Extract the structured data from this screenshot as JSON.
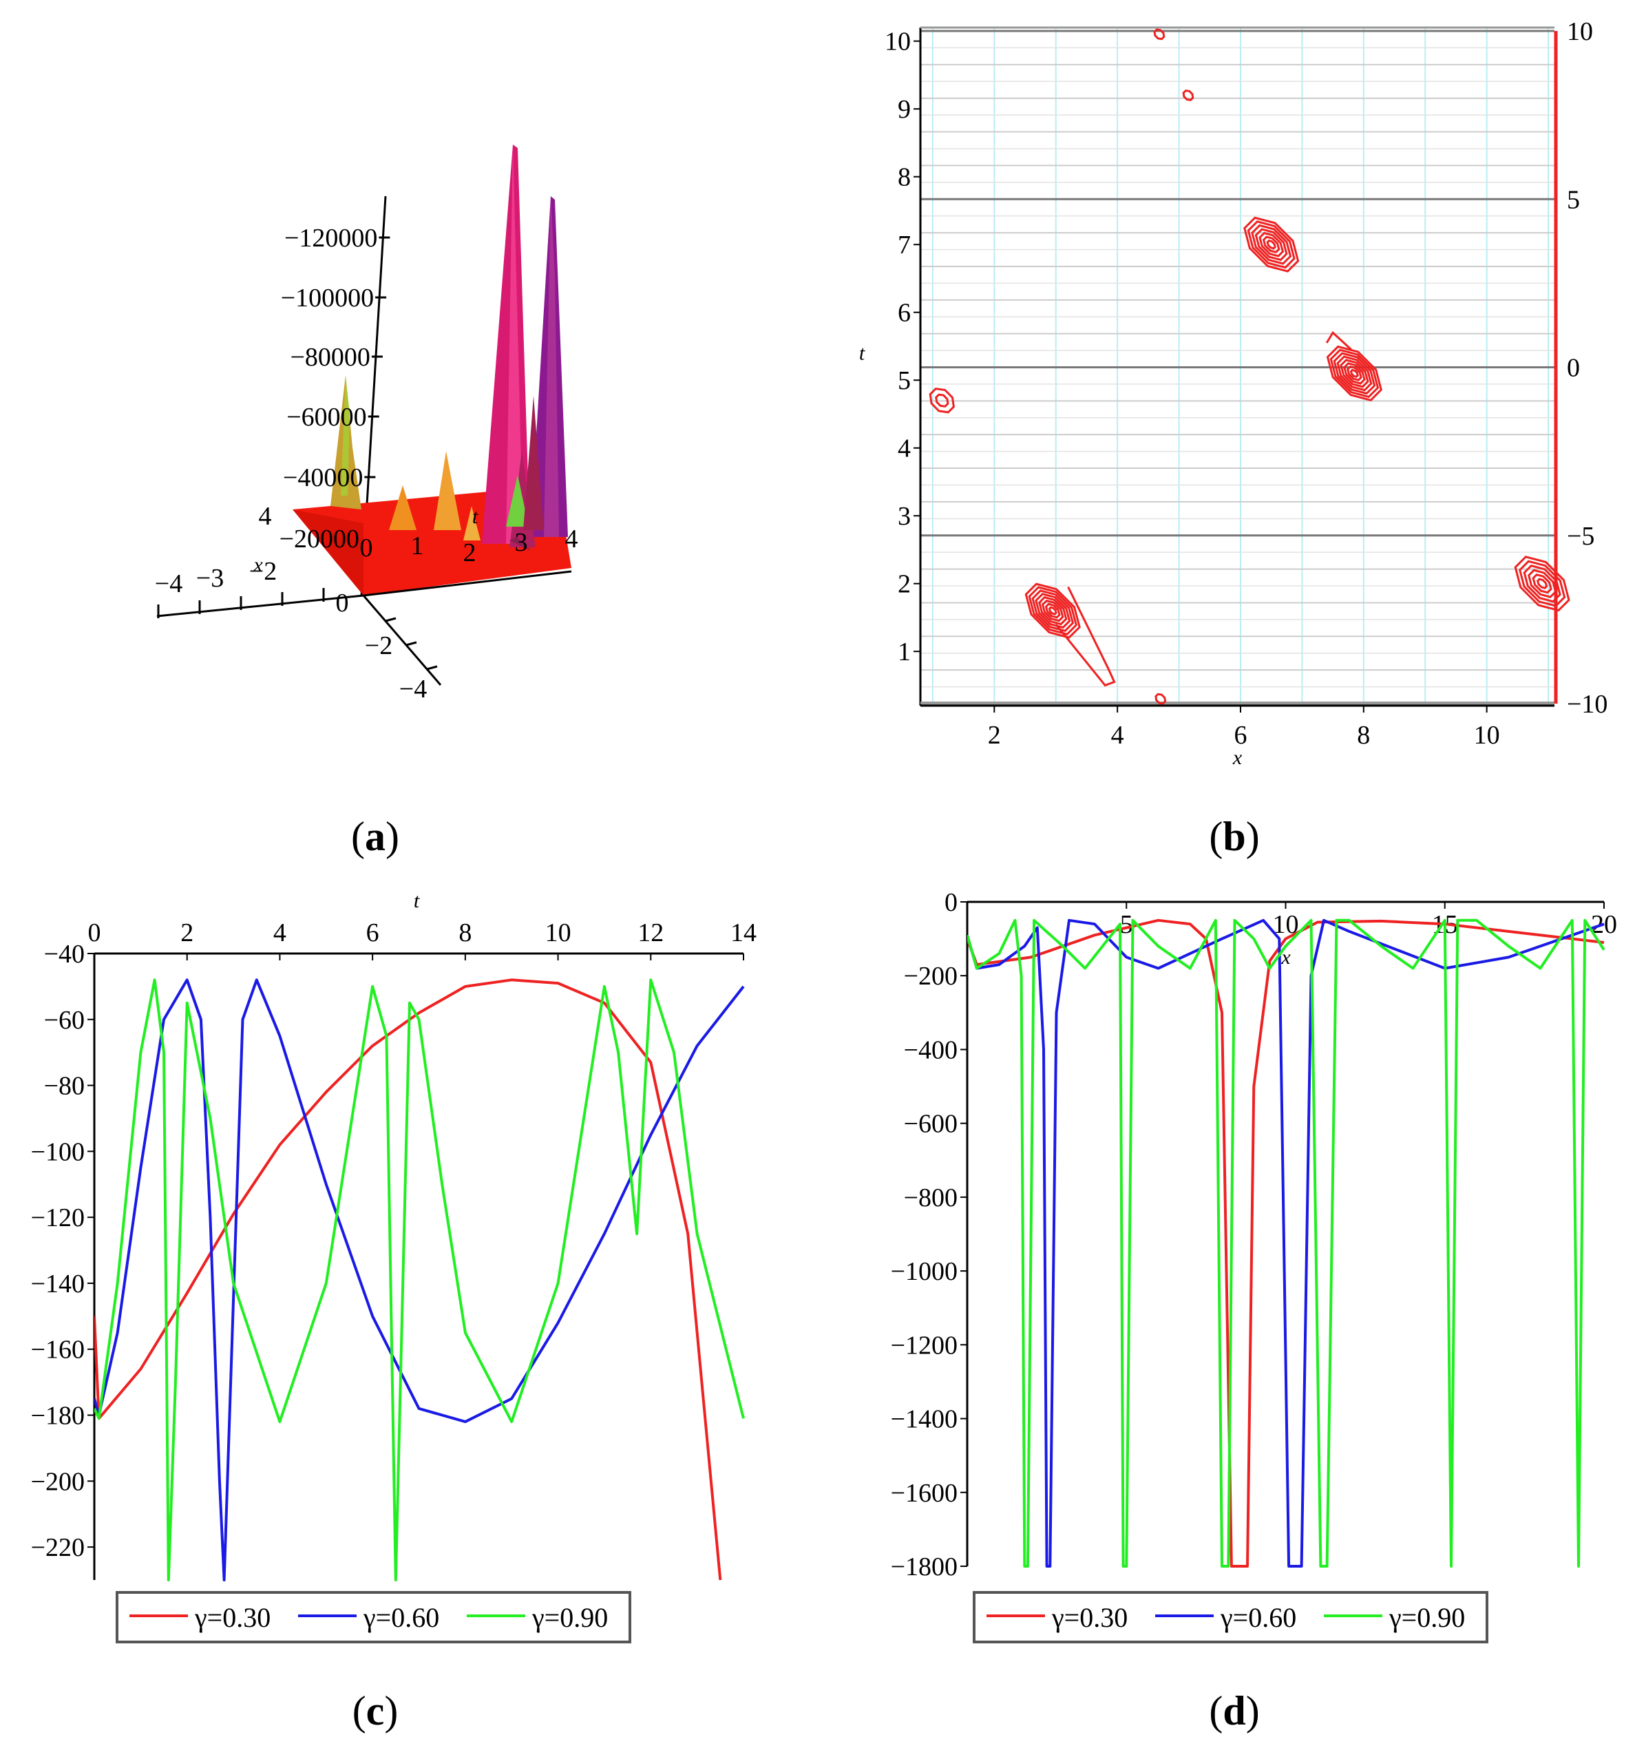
{
  "figure": {
    "panels": [
      {
        "id": "a",
        "caption_open": "(",
        "caption_letter": "a",
        "caption_close": ")"
      },
      {
        "id": "b",
        "caption_open": "(",
        "caption_letter": "b",
        "caption_close": ")"
      },
      {
        "id": "c",
        "caption_open": "(",
        "caption_letter": "c",
        "caption_close": ")"
      },
      {
        "id": "d",
        "caption_open": "(",
        "caption_letter": "d",
        "caption_close": ")"
      }
    ]
  },
  "colors": {
    "red": "#ee2222",
    "blue": "#1a1ae6",
    "green": "#22ee22",
    "axis": "#000000",
    "grid_major": "#777777",
    "grid_minor": "#cccccc",
    "grid_cyan": "#b8eef4"
  },
  "chart_data": [
    {
      "panel": "a",
      "type": "surface3d",
      "z_ticks": [
        "−120000",
        "−100000",
        "−80000",
        "−60000",
        "−40000",
        "−20000"
      ],
      "x_ticks": [
        "−4",
        "−3",
        "−2",
        "x"
      ],
      "t_ticks": [
        "0",
        "1",
        "2",
        "3",
        "4",
        "t"
      ],
      "y_ticks": [
        "4",
        "0",
        "−2",
        "−4"
      ],
      "title": ""
    },
    {
      "panel": "b",
      "type": "contour",
      "xlabel": "x",
      "ylabel": "t",
      "xlim": [
        0.8,
        11.1
      ],
      "ylim": [
        0.2,
        10.2
      ],
      "x_ticks": [
        "2",
        "4",
        "6",
        "8",
        "10"
      ],
      "y_ticks": [
        "1",
        "2",
        "3",
        "4",
        "5",
        "6",
        "7",
        "8",
        "9",
        "10"
      ],
      "colorbar_ticks": [
        "10",
        "5",
        "0",
        "−5",
        "−10"
      ],
      "colorbar_range": [
        -10,
        10
      ],
      "peaks": [
        {
          "x": 1.15,
          "t": 4.7,
          "levels": 2
        },
        {
          "x": 2.95,
          "t": 1.6,
          "levels": 8
        },
        {
          "x": 6.5,
          "t": 7.0,
          "levels": 7
        },
        {
          "x": 7.85,
          "t": 5.1,
          "levels": 8
        },
        {
          "x": 10.9,
          "t": 2.0,
          "levels": 6
        },
        {
          "x": 4.68,
          "t": 10.1,
          "levels": 1
        },
        {
          "x": 5.15,
          "t": 9.2,
          "levels": 1
        },
        {
          "x": 4.7,
          "t": 0.3,
          "levels": 1
        }
      ]
    },
    {
      "panel": "c",
      "type": "line",
      "xlabel": "t",
      "ylabel": "",
      "xlim": [
        0,
        14
      ],
      "ylim": [
        -230,
        -40
      ],
      "x_ticks": [
        "0",
        "2",
        "4",
        "6",
        "8",
        "10",
        "12",
        "14"
      ],
      "y_ticks": [
        "−40",
        "−60",
        "−80",
        "−100",
        "−120",
        "−140",
        "−160",
        "−180",
        "−200",
        "−220"
      ],
      "series": [
        {
          "name": "γ=0.30",
          "color": "red",
          "x": [
            0,
            0.1,
            1,
            2,
            3,
            4,
            5,
            6,
            7,
            8,
            9,
            10,
            11,
            12,
            12.8,
            13.2,
            13.5
          ],
          "y": [
            -150,
            -181,
            -166,
            -143,
            -119,
            -98,
            -82,
            -68,
            -58,
            -50,
            -48,
            -49,
            -55,
            -73,
            -125,
            -185,
            -230
          ]
        },
        {
          "name": "γ=0.60",
          "color": "blue",
          "x": [
            0,
            0.1,
            0.5,
            1,
            1.5,
            2,
            2.3,
            2.5,
            2.7,
            2.8,
            3.2,
            3.5,
            4,
            5,
            6,
            7,
            8,
            9,
            10,
            11,
            12,
            13,
            14
          ],
          "y": [
            -175,
            -180,
            -155,
            -105,
            -60,
            -48,
            -60,
            -120,
            -200,
            -230,
            -60,
            -48,
            -65,
            -110,
            -150,
            -178,
            -182,
            -175,
            -152,
            -125,
            -95,
            -68,
            -50
          ]
        },
        {
          "name": "γ=0.90",
          "color": "green",
          "x": [
            0,
            0.1,
            0.5,
            1,
            1.3,
            1.5,
            1.6,
            1.75,
            2,
            2.5,
            3,
            4,
            5,
            6,
            6.3,
            6.5,
            6.8,
            7,
            7.5,
            8,
            9,
            10,
            11,
            11.3,
            11.7,
            12,
            12.5,
            13,
            14
          ],
          "y": [
            -178,
            -181,
            -140,
            -70,
            -48,
            -70,
            -230,
            -170,
            -55,
            -90,
            -140,
            -182,
            -140,
            -50,
            -65,
            -230,
            -55,
            -60,
            -110,
            -155,
            -182,
            -140,
            -50,
            -70,
            -125,
            -48,
            -70,
            -125,
            -181
          ]
        }
      ],
      "legend": [
        "γ=0.30",
        "γ=0.60",
        "γ=0.90"
      ]
    },
    {
      "panel": "d",
      "type": "line",
      "xlabel": "x",
      "ylabel": "",
      "xlim": [
        0,
        20
      ],
      "ylim": [
        -1800,
        0
      ],
      "x_ticks": [
        "5",
        "10",
        "15",
        "20"
      ],
      "y_ticks": [
        "0",
        "−200",
        "−400",
        "−600",
        "−800",
        "−1000",
        "−1200",
        "−1400",
        "−1600",
        "−1800"
      ],
      "series": [
        {
          "name": "γ=0.30",
          "color": "red",
          "x": [
            0,
            0.3,
            2,
            4,
            6,
            7,
            7.5,
            8,
            8.3,
            8.5,
            8.8,
            9,
            9.5,
            10,
            11,
            13,
            15,
            17,
            20
          ],
          "y": [
            -100,
            -170,
            -150,
            -90,
            -50,
            -60,
            -100,
            -300,
            -1800,
            -1800,
            -1800,
            -500,
            -160,
            -100,
            -55,
            -52,
            -60,
            -80,
            -110
          ]
        },
        {
          "name": "γ=0.60",
          "color": "blue",
          "x": [
            0,
            0.3,
            1,
            1.8,
            2.2,
            2.4,
            2.5,
            2.6,
            2.8,
            3.2,
            4,
            5,
            6,
            8,
            9.3,
            9.8,
            10.1,
            10.3,
            10.5,
            10.8,
            11.2,
            12,
            15,
            17,
            20
          ],
          "y": [
            -90,
            -180,
            -170,
            -120,
            -70,
            -400,
            -1800,
            -1800,
            -300,
            -50,
            -60,
            -150,
            -180,
            -100,
            -50,
            -100,
            -1800,
            -1800,
            -1800,
            -200,
            -50,
            -80,
            -180,
            -150,
            -60
          ]
        },
        {
          "name": "γ=0.90",
          "color": "green",
          "x": [
            0,
            0.3,
            1,
            1.5,
            1.7,
            1.8,
            1.9,
            2.1,
            3,
            3.7,
            4.8,
            4.9,
            5.0,
            5.2,
            6,
            7,
            7.8,
            8.0,
            8.2,
            8.4,
            9,
            9.5,
            10,
            10.8,
            11.1,
            11.3,
            11.6,
            12,
            13,
            14,
            15,
            15.2,
            15.4,
            16,
            17,
            18,
            19,
            19.2,
            19.4,
            20
          ],
          "y": [
            -90,
            -180,
            -140,
            -50,
            -200,
            -1800,
            -1800,
            -50,
            -120,
            -180,
            -60,
            -1800,
            -1800,
            -50,
            -120,
            -180,
            -50,
            -1800,
            -1800,
            -50,
            -100,
            -180,
            -120,
            -50,
            -1800,
            -1800,
            -50,
            -50,
            -120,
            -180,
            -50,
            -1800,
            -50,
            -50,
            -120,
            -180,
            -50,
            -1800,
            -50,
            -130
          ]
        }
      ],
      "legend": [
        "γ=0.30",
        "γ=0.60",
        "γ=0.90"
      ]
    }
  ]
}
